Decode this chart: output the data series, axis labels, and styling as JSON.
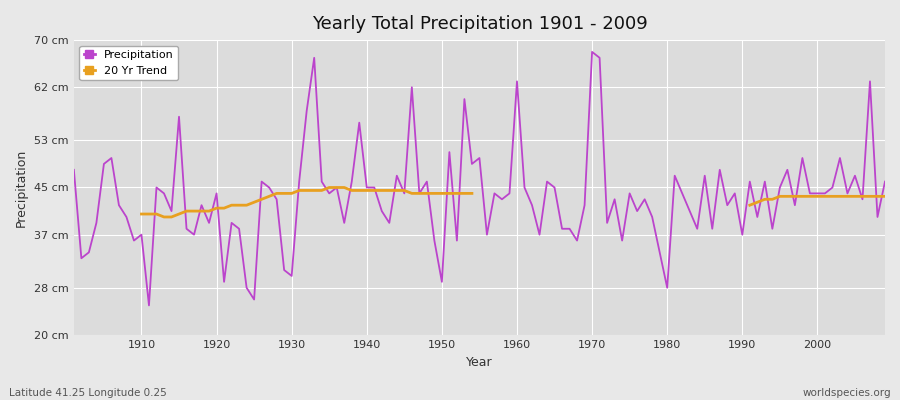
{
  "title": "Yearly Total Precipitation 1901 - 2009",
  "xlabel": "Year",
  "ylabel": "Precipitation",
  "subtitle": "Latitude 41.25 Longitude 0.25",
  "watermark": "worldspecies.org",
  "ylim": [
    20,
    70
  ],
  "yticks": [
    20,
    28,
    37,
    45,
    53,
    62,
    70
  ],
  "ytick_labels": [
    "20 cm",
    "28 cm",
    "37 cm",
    "45 cm",
    "53 cm",
    "62 cm",
    "70 cm"
  ],
  "xticks": [
    1910,
    1920,
    1930,
    1940,
    1950,
    1960,
    1970,
    1980,
    1990,
    2000
  ],
  "precip_color": "#BB44CC",
  "trend_color": "#E8A020",
  "bg_color": "#DCDCDC",
  "fig_bg_color": "#E8E8E8",
  "years": [
    1901,
    1902,
    1903,
    1904,
    1905,
    1906,
    1907,
    1908,
    1909,
    1910,
    1911,
    1912,
    1913,
    1914,
    1915,
    1916,
    1917,
    1918,
    1919,
    1920,
    1921,
    1922,
    1923,
    1924,
    1925,
    1926,
    1927,
    1928,
    1929,
    1930,
    1931,
    1932,
    1933,
    1934,
    1935,
    1936,
    1937,
    1938,
    1939,
    1940,
    1941,
    1942,
    1943,
    1944,
    1945,
    1946,
    1947,
    1948,
    1949,
    1950,
    1951,
    1952,
    1953,
    1954,
    1955,
    1956,
    1957,
    1958,
    1959,
    1960,
    1961,
    1962,
    1963,
    1964,
    1965,
    1966,
    1967,
    1968,
    1969,
    1970,
    1971,
    1972,
    1973,
    1974,
    1975,
    1976,
    1977,
    1978,
    1979,
    1980,
    1981,
    1982,
    1983,
    1984,
    1985,
    1986,
    1987,
    1988,
    1989,
    1990,
    1991,
    1992,
    1993,
    1994,
    1995,
    1996,
    1997,
    1998,
    1999,
    2000,
    2001,
    2002,
    2003,
    2004,
    2005,
    2006,
    2007,
    2008,
    2009
  ],
  "precipitation": [
    48,
    33,
    34,
    39,
    49,
    50,
    42,
    40,
    36,
    37,
    25,
    45,
    44,
    41,
    57,
    38,
    37,
    42,
    39,
    44,
    29,
    39,
    38,
    28,
    26,
    46,
    45,
    43,
    31,
    30,
    46,
    58,
    67,
    46,
    44,
    45,
    39,
    46,
    56,
    45,
    45,
    41,
    39,
    47,
    44,
    62,
    44,
    46,
    36,
    29,
    51,
    36,
    60,
    49,
    50,
    37,
    44,
    43,
    44,
    63,
    45,
    42,
    37,
    46,
    45,
    38,
    38,
    36,
    42,
    68,
    67,
    39,
    43,
    36,
    44,
    41,
    43,
    40,
    34,
    28,
    47,
    44,
    41,
    38,
    47,
    38,
    48,
    42,
    44,
    37,
    46,
    40,
    46,
    38,
    45,
    48,
    42,
    50,
    44,
    44,
    44,
    45,
    50,
    44,
    47,
    43,
    63,
    40,
    46
  ],
  "trend_segment1_years": [
    1910,
    1911,
    1912,
    1913,
    1914,
    1915,
    1916,
    1917,
    1918,
    1919,
    1920,
    1921,
    1922,
    1923,
    1924,
    1925,
    1926,
    1927,
    1928,
    1929,
    1930,
    1931,
    1932,
    1933,
    1934,
    1935,
    1936,
    1937,
    1938,
    1939,
    1940,
    1941,
    1942,
    1943,
    1944,
    1945,
    1946,
    1947,
    1948,
    1949,
    1950,
    1951,
    1952,
    1953,
    1954
  ],
  "trend_segment1": [
    40.5,
    40.5,
    40.5,
    40.0,
    40.0,
    40.5,
    41.0,
    41.0,
    41.0,
    41.0,
    41.5,
    41.5,
    42.0,
    42.0,
    42.0,
    42.5,
    43.0,
    43.5,
    44.0,
    44.0,
    44.0,
    44.5,
    44.5,
    44.5,
    44.5,
    45.0,
    45.0,
    45.0,
    44.5,
    44.5,
    44.5,
    44.5,
    44.5,
    44.5,
    44.5,
    44.5,
    44.0,
    44.0,
    44.0,
    44.0,
    44.0,
    44.0,
    44.0,
    44.0,
    44.0
  ],
  "trend_segment2_years": [
    1991,
    1992,
    1993,
    1994,
    1995,
    1996,
    1997,
    1998,
    1999,
    2000,
    2001,
    2002,
    2003,
    2004,
    2005,
    2006,
    2007,
    2008,
    2009
  ],
  "trend_segment2": [
    42.0,
    42.5,
    43.0,
    43.0,
    43.5,
    43.5,
    43.5,
    43.5,
    43.5,
    43.5,
    43.5,
    43.5,
    43.5,
    43.5,
    43.5,
    43.5,
    43.5,
    43.5,
    43.5
  ]
}
